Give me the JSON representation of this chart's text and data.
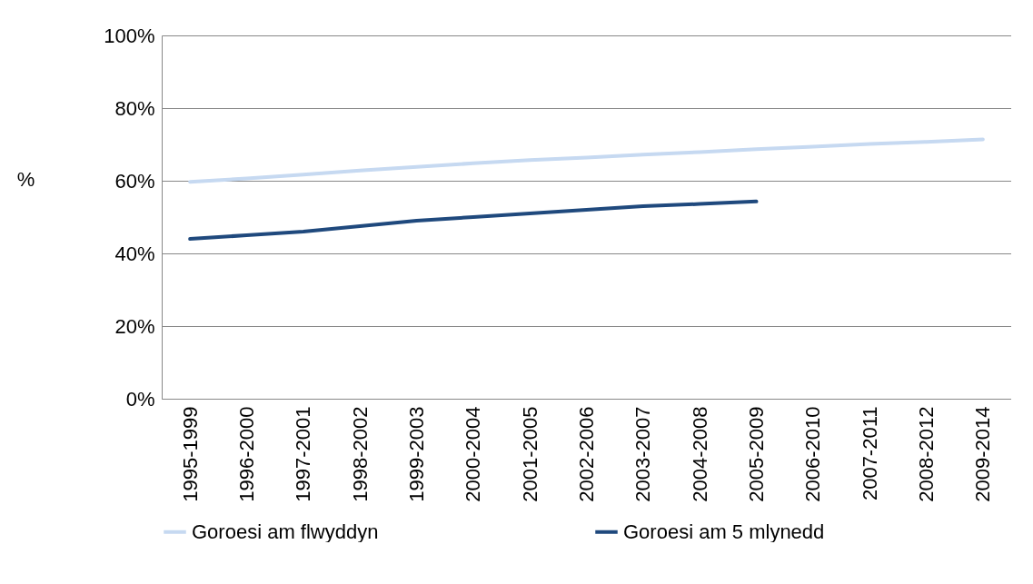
{
  "chart_data": {
    "type": "line",
    "ylabel": "%",
    "categories": [
      "1995-1999",
      "1996-2000",
      "1997-2001",
      "1998-2002",
      "1999-2003",
      "2000-2004",
      "2001-2005",
      "2002-2006",
      "2003-2007",
      "2004-2008",
      "2005-2009",
      "2006-2010",
      "2007-2011",
      "2008-2012",
      "2009-2014"
    ],
    "series": [
      {
        "name": "Goroesi am flwyddyn",
        "color": "#c6d9f1",
        "values": [
          59.7,
          60.6,
          61.7,
          62.8,
          63.8,
          64.8,
          65.7,
          66.4,
          67.2,
          67.9,
          68.7,
          69.4,
          70.1,
          70.7,
          71.4
        ]
      },
      {
        "name": "Goroesi am 5 mlynedd",
        "color": "#1f497d",
        "values": [
          44,
          45,
          46,
          47.5,
          49,
          50,
          51,
          52,
          53,
          53.6,
          54.3,
          null,
          null,
          null,
          null
        ]
      }
    ],
    "ylim": [
      0,
      100
    ],
    "yticks": [
      {
        "value": 0,
        "label": "0%"
      },
      {
        "value": 20,
        "label": "20%"
      },
      {
        "value": 40,
        "label": "40%"
      },
      {
        "value": 60,
        "label": "60%"
      },
      {
        "value": 80,
        "label": "80%"
      },
      {
        "value": 100,
        "label": "100%"
      }
    ],
    "grid": "y",
    "legend": "bottom",
    "marker": "none",
    "line_style": "solid"
  }
}
